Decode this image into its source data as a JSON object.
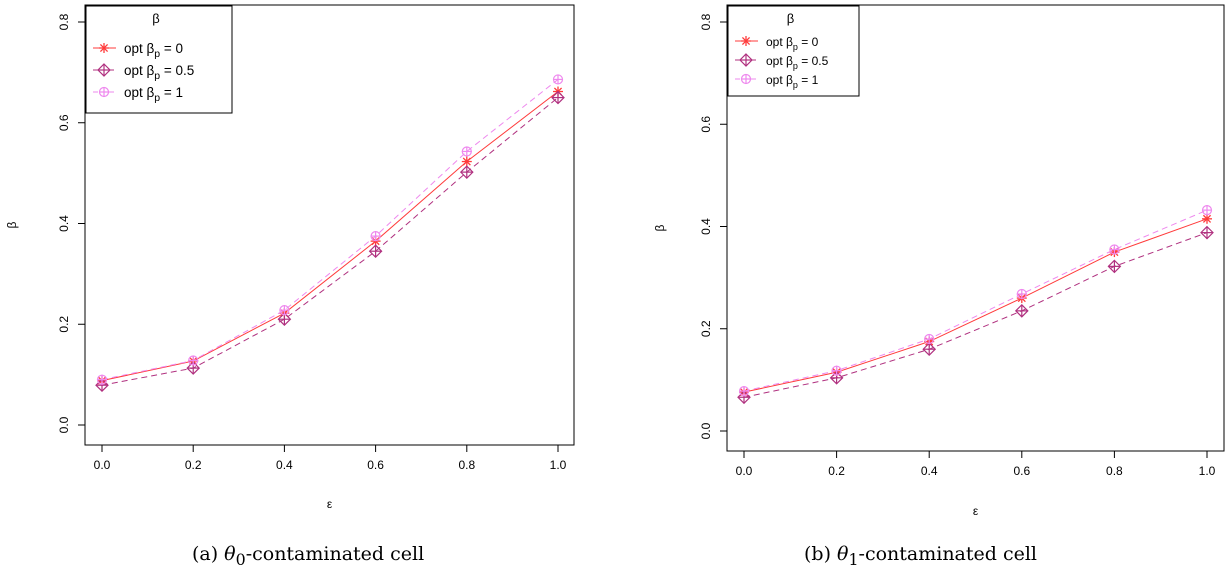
{
  "chart_data": [
    {
      "type": "line",
      "caption_label": "(a)",
      "caption_sub": "0",
      "caption_text": "-contaminated cell",
      "xlabel": "ε",
      "ylabel": "β",
      "x": [
        0.0,
        0.2,
        0.4,
        0.6,
        0.8,
        1.0
      ],
      "xticks": [
        "0.0",
        "0.2",
        "0.4",
        "0.6",
        "0.8",
        "1.0"
      ],
      "yticks": [
        "0.0",
        "0.2",
        "0.4",
        "0.6",
        "0.8"
      ],
      "xlim": [
        0,
        1
      ],
      "ylim": [
        0,
        0.8
      ],
      "grid": false,
      "legend_title": "β",
      "legend_position": "top-left",
      "series": [
        {
          "label_main": "opt β",
          "label_sub": "p",
          "label_tail": " = 0",
          "color": "#ff3b3b",
          "dash": "solid",
          "marker": "star",
          "values": [
            0.088,
            0.127,
            0.222,
            0.365,
            0.523,
            0.662
          ]
        },
        {
          "label_main": "opt β",
          "label_sub": "p",
          "label_tail": " = 0.5",
          "color": "#b0307f",
          "dash": "dashed",
          "marker": "diamond-plus",
          "values": [
            0.079,
            0.113,
            0.21,
            0.345,
            0.502,
            0.65
          ]
        },
        {
          "label_main": "opt β",
          "label_sub": "p",
          "label_tail": " = 1",
          "color": "#ee88ee",
          "dash": "dashed",
          "marker": "circle-plus",
          "values": [
            0.09,
            0.128,
            0.228,
            0.375,
            0.543,
            0.686
          ]
        }
      ]
    },
    {
      "type": "line",
      "caption_label": "(b)",
      "caption_sub": "1",
      "caption_text": "-contaminated cell",
      "xlabel": "ε",
      "ylabel": "β",
      "x": [
        0.0,
        0.2,
        0.4,
        0.6,
        0.8,
        1.0
      ],
      "xticks": [
        "0.0",
        "0.2",
        "0.4",
        "0.6",
        "0.8",
        "1.0"
      ],
      "yticks": [
        "0.0",
        "0.2",
        "0.4",
        "0.6",
        "0.8"
      ],
      "xlim": [
        0,
        1
      ],
      "ylim": [
        0,
        0.8
      ],
      "grid": false,
      "legend_title": "β",
      "legend_position": "top-left",
      "series": [
        {
          "label_main": "opt β",
          "label_sub": "p",
          "label_tail": " = 0",
          "color": "#ff3b3b",
          "dash": "solid",
          "marker": "star",
          "values": [
            0.076,
            0.115,
            0.175,
            0.26,
            0.35,
            0.415
          ]
        },
        {
          "label_main": "opt β",
          "label_sub": "p",
          "label_tail": " = 0.5",
          "color": "#b0307f",
          "dash": "dashed",
          "marker": "diamond-plus",
          "values": [
            0.066,
            0.104,
            0.16,
            0.235,
            0.322,
            0.388
          ]
        },
        {
          "label_main": "opt β",
          "label_sub": "p",
          "label_tail": " = 1",
          "color": "#ee88ee",
          "dash": "dashed",
          "marker": "circle-plus",
          "values": [
            0.078,
            0.118,
            0.18,
            0.268,
            0.355,
            0.432
          ]
        }
      ]
    }
  ]
}
